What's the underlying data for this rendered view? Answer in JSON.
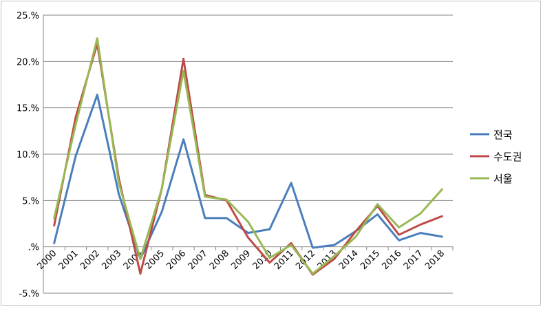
{
  "chart_data": {
    "type": "line",
    "title": "",
    "xlabel": "",
    "ylabel": "",
    "ylim": [
      -5,
      25
    ],
    "y_ticks": [
      -5,
      0,
      5,
      10,
      15,
      20,
      25
    ],
    "y_tick_labels": [
      "-5.%",
      ".%",
      "5.%",
      "10.%",
      "15.%",
      "20.%",
      "25.%"
    ],
    "grid": "horizontal",
    "legend_position": "right",
    "categories": [
      "2000",
      "2001",
      "2002",
      "2003",
      "2004",
      "2005",
      "2006",
      "2007",
      "2008",
      "2009",
      "2010",
      "2011",
      "2012",
      "2013",
      "2014",
      "2015",
      "2016",
      "2017",
      "2018"
    ],
    "series": [
      {
        "name": "전국",
        "color": "#4a7ebb",
        "values": [
          0.4,
          9.8,
          16.4,
          5.7,
          -1.3,
          3.8,
          11.6,
          3.1,
          3.1,
          1.5,
          1.9,
          6.9,
          -0.1,
          0.2,
          1.7,
          3.5,
          0.7,
          1.5,
          1.1
        ]
      },
      {
        "name": "수도권",
        "color": "#be4b48",
        "values": [
          2.3,
          14.0,
          21.9,
          7.4,
          -2.9,
          6.3,
          20.3,
          5.6,
          5.0,
          1.0,
          -1.7,
          0.4,
          -3.0,
          -1.3,
          1.7,
          4.4,
          1.3,
          2.4,
          3.3
        ]
      },
      {
        "name": "서울",
        "color": "#98b954",
        "values": [
          3.1,
          13.2,
          22.5,
          6.9,
          -1.3,
          6.3,
          19.0,
          5.4,
          5.1,
          2.7,
          -1.2,
          0.2,
          -2.9,
          -1.0,
          1.1,
          4.6,
          2.1,
          3.6,
          6.2
        ]
      }
    ]
  }
}
